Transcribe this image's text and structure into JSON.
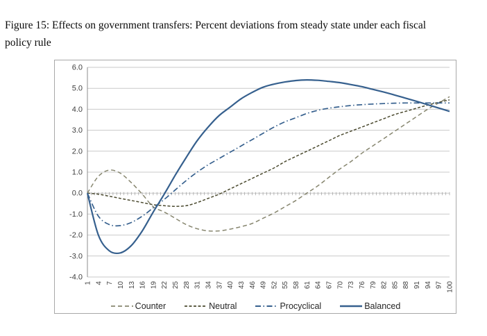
{
  "caption": {
    "line1": "Figure 15: Effects on government transfers: Percent deviations from steady state under each fiscal",
    "line2": "policy rule"
  },
  "chart_data": {
    "type": "line",
    "title": "Figure 15: Effects on government transfers: Percent deviations from steady state under each fiscal policy rule",
    "xlabel": "",
    "ylabel": "",
    "ylim": [
      -4.0,
      6.0
    ],
    "ytick_interval": 1.0,
    "y_tick_labels": [
      "6.0",
      "5.0",
      "4.0",
      "3.0",
      "2.0",
      "1.0",
      "0.0",
      "-1.0",
      "-2.0",
      "-3.0",
      "-4.0"
    ],
    "x": [
      1,
      4,
      7,
      10,
      13,
      16,
      19,
      22,
      25,
      28,
      31,
      34,
      37,
      40,
      43,
      46,
      49,
      52,
      55,
      58,
      61,
      64,
      67,
      70,
      73,
      76,
      79,
      82,
      85,
      88,
      91,
      94,
      97,
      100
    ],
    "x_tick_labels": [
      "1",
      "4",
      "7",
      "10",
      "13",
      "16",
      "19",
      "22",
      "25",
      "28",
      "31",
      "34",
      "37",
      "40",
      "43",
      "46",
      "49",
      "52",
      "55",
      "58",
      "61",
      "64",
      "67",
      "70",
      "73",
      "76",
      "79",
      "82",
      "85",
      "88",
      "91",
      "94",
      "97",
      "100"
    ],
    "grid": true,
    "legend_position": "bottom",
    "grid_color": "#c9c9c9",
    "axis_color": "#8c8c8c",
    "label_color": "#404040",
    "frame_border_color": "#a8a8a8",
    "series": [
      {
        "name": "Counter",
        "color": "#87866f",
        "dash": "6 4",
        "width": 1.5,
        "values": [
          0.0,
          0.8,
          1.1,
          0.95,
          0.5,
          -0.05,
          -0.65,
          -0.9,
          -1.2,
          -1.5,
          -1.7,
          -1.8,
          -1.8,
          -1.72,
          -1.6,
          -1.45,
          -1.2,
          -0.95,
          -0.65,
          -0.35,
          0.0,
          0.35,
          0.75,
          1.15,
          1.5,
          1.9,
          2.25,
          2.6,
          2.95,
          3.3,
          3.65,
          4.0,
          4.3,
          4.6
        ]
      },
      {
        "name": "Neutral",
        "color": "#4b4a2f",
        "dash": "4 2.5",
        "width": 1.5,
        "values": [
          0.0,
          -0.05,
          -0.15,
          -0.25,
          -0.35,
          -0.45,
          -0.55,
          -0.6,
          -0.63,
          -0.6,
          -0.45,
          -0.25,
          -0.05,
          0.2,
          0.45,
          0.7,
          0.95,
          1.2,
          1.5,
          1.75,
          2.0,
          2.25,
          2.5,
          2.75,
          2.95,
          3.15,
          3.35,
          3.55,
          3.75,
          3.9,
          4.05,
          4.2,
          4.33,
          4.45
        ]
      },
      {
        "name": "Procyclical",
        "color": "#36608e",
        "dash": "8 3.5 1.5 3.5",
        "width": 1.7,
        "values": [
          0.0,
          -1.1,
          -1.5,
          -1.55,
          -1.4,
          -1.1,
          -0.7,
          -0.3,
          0.15,
          0.6,
          1.0,
          1.35,
          1.65,
          1.95,
          2.25,
          2.55,
          2.85,
          3.15,
          3.4,
          3.6,
          3.8,
          3.95,
          4.05,
          4.12,
          4.18,
          4.22,
          4.25,
          4.27,
          4.29,
          4.3,
          4.3,
          4.3,
          4.3,
          4.3
        ]
      },
      {
        "name": "Balanced",
        "color": "#36608e",
        "dash": "",
        "width": 2.2,
        "values": [
          0.0,
          -2.0,
          -2.75,
          -2.85,
          -2.5,
          -1.8,
          -0.9,
          -0.05,
          0.85,
          1.7,
          2.5,
          3.15,
          3.7,
          4.1,
          4.5,
          4.8,
          5.05,
          5.2,
          5.3,
          5.37,
          5.4,
          5.38,
          5.33,
          5.27,
          5.18,
          5.08,
          4.95,
          4.82,
          4.68,
          4.53,
          4.38,
          4.22,
          4.06,
          3.9
        ]
      }
    ]
  }
}
